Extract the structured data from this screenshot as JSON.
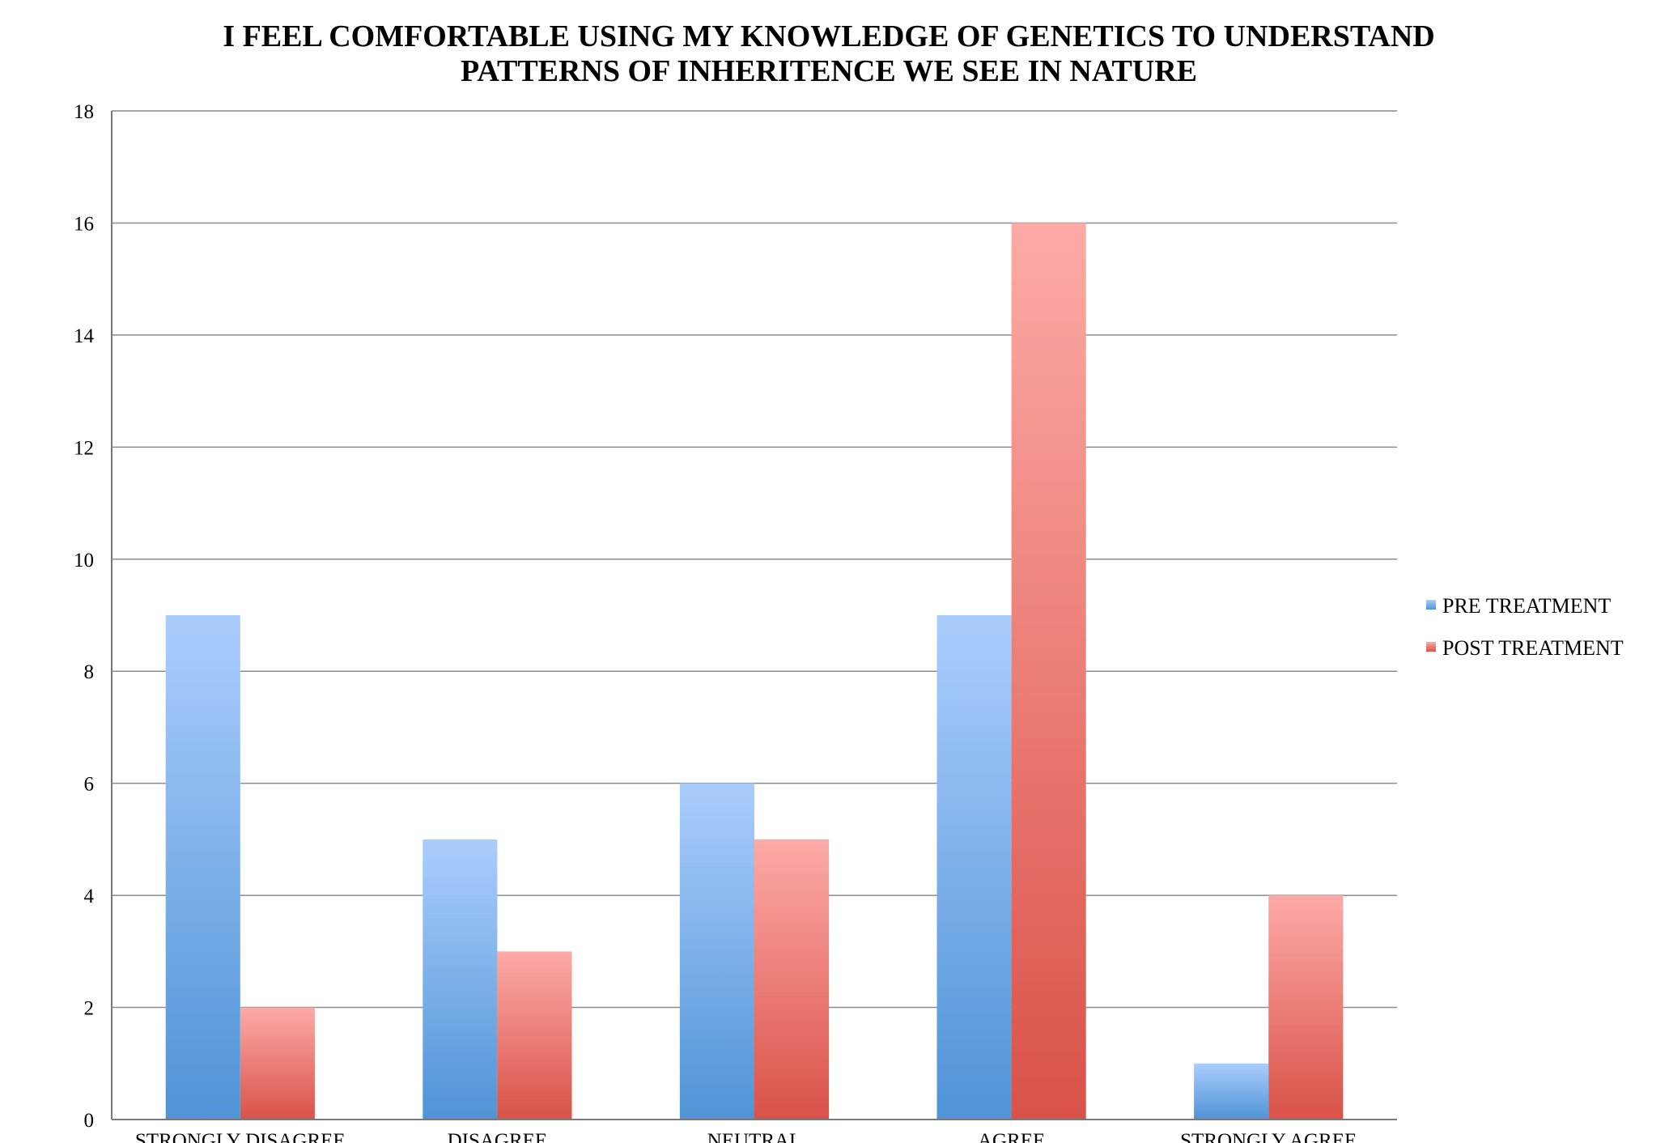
{
  "chart_data": {
    "type": "bar",
    "title": "I FEEL COMFORTABLE USING MY KNOWLEDGE OF GENETICS TO UNDERSTAND PATTERNS OF INHERITENCE WE SEE IN NATURE",
    "title_lines": [
      "I FEEL COMFORTABLE USING MY KNOWLEDGE OF GENETICS TO UNDERSTAND",
      "PATTERNS OF INHERITENCE WE SEE IN NATURE"
    ],
    "xlabel": "",
    "ylabel": "",
    "categories": [
      "STRONGLY DISAGREE",
      "DISAGREE",
      "NEUTRAL",
      "AGREE",
      "STRONGLY AGREE"
    ],
    "series": [
      {
        "name": "PRE TREATMENT",
        "values": [
          9,
          5,
          6,
          9,
          1
        ],
        "color_top": "#abcdfd",
        "color_bottom": "#4f93d6"
      },
      {
        "name": "POST TREATMENT",
        "values": [
          2,
          3,
          5,
          16,
          4
        ],
        "color_top": "#fdaaa6",
        "color_bottom": "#d95248"
      }
    ],
    "ylim": [
      0,
      18
    ],
    "yticks": [
      0,
      2,
      4,
      6,
      8,
      10,
      12,
      14,
      16,
      18
    ],
    "grid": true,
    "legend_position": "right"
  }
}
